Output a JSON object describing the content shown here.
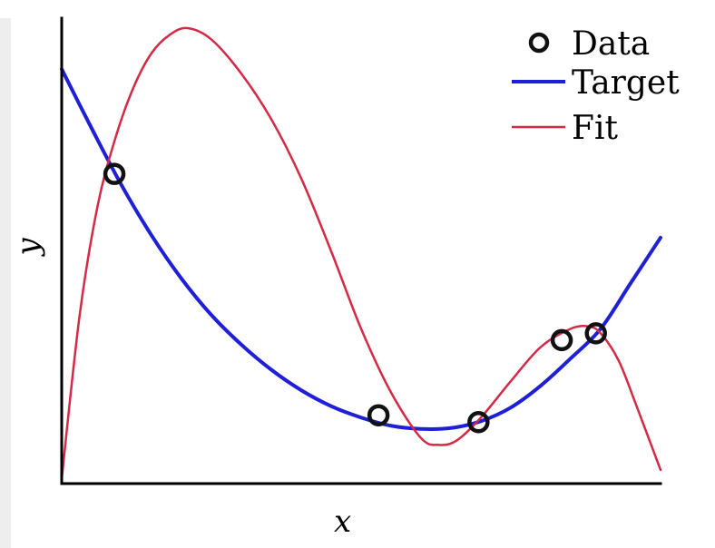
{
  "chart_data": {
    "type": "line",
    "title": "",
    "xlabel": "x",
    "ylabel": "y",
    "xlim": [
      0,
      1
    ],
    "ylim": [
      0,
      1
    ],
    "grid": false,
    "ticks": false,
    "legend_position": "top-right",
    "series": [
      {
        "name": "Data",
        "kind": "scatter",
        "marker": "open-circle",
        "color": "#111111",
        "x": [
          0.088,
          0.529,
          0.696,
          0.835,
          0.892
        ],
        "y": [
          0.67,
          0.14,
          0.125,
          0.305,
          0.32
        ]
      },
      {
        "name": "Target",
        "kind": "line",
        "color": "#1f1fd6",
        "x": [
          0.0,
          0.05,
          0.1,
          0.15,
          0.2,
          0.25,
          0.3,
          0.35,
          0.4,
          0.45,
          0.5,
          0.55,
          0.6,
          0.65,
          0.7,
          0.75,
          0.8,
          0.85,
          0.9,
          0.95,
          1.0
        ],
        "y": [
          0.9,
          0.77,
          0.645,
          0.535,
          0.44,
          0.36,
          0.295,
          0.24,
          0.195,
          0.16,
          0.135,
          0.117,
          0.11,
          0.112,
          0.127,
          0.157,
          0.205,
          0.265,
          0.33,
          0.43,
          0.53
        ]
      },
      {
        "name": "Fit",
        "kind": "line",
        "color": "#d42a45",
        "x": [
          0.0,
          0.03,
          0.06,
          0.09,
          0.12,
          0.15,
          0.18,
          0.21,
          0.25,
          0.3,
          0.35,
          0.4,
          0.45,
          0.5,
          0.55,
          0.6,
          0.63,
          0.66,
          0.7,
          0.75,
          0.8,
          0.85,
          0.88,
          0.9,
          0.93,
          0.96,
          1.0
        ],
        "y": [
          0.0,
          0.36,
          0.6,
          0.75,
          0.86,
          0.935,
          0.975,
          0.99,
          0.965,
          0.89,
          0.79,
          0.66,
          0.5,
          0.33,
          0.19,
          0.09,
          0.075,
          0.085,
          0.135,
          0.215,
          0.29,
          0.33,
          0.335,
          0.32,
          0.26,
          0.16,
          0.02
        ]
      }
    ]
  }
}
